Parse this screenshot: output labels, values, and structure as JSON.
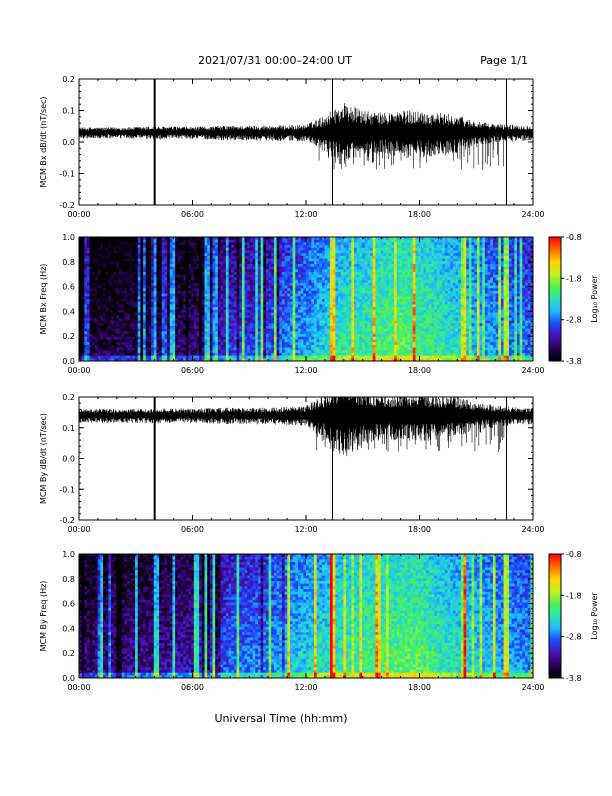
{
  "header": {
    "date_range": "2021/07/31  00:00–24:00 UT",
    "page": "Page 1/1"
  },
  "xlabel": "Universal Time (hh:mm)",
  "colors": {
    "trace": "#000000",
    "background": "#ffffff",
    "colormap": [
      "#000000",
      "#2a0055",
      "#4b0fb0",
      "#1a4bff",
      "#1fb8ff",
      "#2be3b5",
      "#55f24a",
      "#c8f020",
      "#ffd400",
      "#ff6a00",
      "#ff0000"
    ]
  },
  "chart_data": [
    {
      "type": "line",
      "panel": "Bx time series",
      "ylabel": "MCM Bx dB/dt (nT/sec)",
      "x_ticks": [
        "00:00",
        "06:00",
        "12:00",
        "18:00",
        "24:00"
      ],
      "y_ticks": [
        "0.2",
        "0.1",
        "0.0",
        "-0.1",
        "-0.2"
      ],
      "xlim": [
        0,
        24
      ],
      "ylim": [
        -0.2,
        0.2
      ],
      "baseline": 0.03,
      "envelope": {
        "hours": [
          0,
          2,
          4,
          6,
          8,
          10,
          12,
          13,
          14,
          15,
          16,
          17,
          18,
          19,
          20,
          21,
          22,
          23,
          24
        ],
        "amplitude": [
          0.012,
          0.012,
          0.014,
          0.013,
          0.016,
          0.016,
          0.018,
          0.04,
          0.07,
          0.05,
          0.045,
          0.05,
          0.05,
          0.045,
          0.04,
          0.025,
          0.02,
          0.018,
          0.015
        ]
      },
      "spikes": [
        {
          "hour": 4.0,
          "min": -0.2,
          "max": 0.2
        },
        {
          "hour": 13.4,
          "min": -0.2,
          "max": 0.2
        },
        {
          "hour": 22.6,
          "min": -0.2,
          "max": 0.2
        }
      ]
    },
    {
      "type": "heatmap",
      "panel": "Bx spectrogram",
      "ylabel": "MCM Bx Freq (Hz)",
      "x_ticks": [
        "00:00",
        "06:00",
        "12:00",
        "18:00",
        "24:00"
      ],
      "y_ticks": [
        "1.0",
        "0.8",
        "0.6",
        "0.4",
        "0.2",
        "0.0"
      ],
      "xlim": [
        0,
        24
      ],
      "ylim": [
        0,
        1.0
      ],
      "colorbar": {
        "label": "Log₁₀ Power",
        "ticks": [
          "-0.8",
          "-1.8",
          "-2.8",
          "-3.8"
        ],
        "range": [
          -3.8,
          -0.8
        ]
      },
      "power_profile": {
        "hours": [
          0,
          2,
          4,
          6,
          7,
          8,
          10,
          11,
          12,
          13,
          14,
          15,
          16,
          17,
          18,
          19,
          20,
          21,
          22,
          23,
          24
        ],
        "log_power": [
          -3.6,
          -3.5,
          -3.5,
          -3.4,
          -3.3,
          -3.0,
          -2.9,
          -2.7,
          -2.6,
          -2.4,
          -2.2,
          -2.2,
          -2.1,
          -2.0,
          -2.1,
          -2.2,
          -2.3,
          -2.5,
          -2.6,
          -2.7,
          -2.8
        ]
      },
      "bright_bands_hours": [
        4.0,
        13.4,
        20.4,
        22.6
      ]
    },
    {
      "type": "line",
      "panel": "By time series",
      "ylabel": "MCM By dB/dt (nT/sec)",
      "x_ticks": [
        "00:00",
        "06:00",
        "12:00",
        "18:00",
        "24:00"
      ],
      "y_ticks": [
        "0.2",
        "0.1",
        "0.0",
        "-0.1",
        "-0.2"
      ],
      "xlim": [
        0,
        24
      ],
      "ylim": [
        -0.2,
        0.2
      ],
      "baseline": 0.14,
      "envelope": {
        "hours": [
          0,
          2,
          4,
          6,
          8,
          10,
          12,
          13,
          14,
          15,
          16,
          17,
          18,
          19,
          20,
          21,
          22,
          23,
          24
        ],
        "amplitude": [
          0.015,
          0.015,
          0.016,
          0.016,
          0.018,
          0.018,
          0.022,
          0.05,
          0.09,
          0.06,
          0.05,
          0.05,
          0.055,
          0.05,
          0.045,
          0.03,
          0.025,
          0.02,
          0.018
        ]
      },
      "spikes": [
        {
          "hour": 4.0,
          "min": -0.2,
          "max": 0.2
        },
        {
          "hour": 13.4,
          "min": -0.2,
          "max": 0.2
        },
        {
          "hour": 22.6,
          "min": -0.2,
          "max": 0.2
        }
      ]
    },
    {
      "type": "heatmap",
      "panel": "By spectrogram",
      "ylabel": "MCM By Freq (Hz)",
      "x_ticks": [
        "00:00",
        "06:00",
        "12:00",
        "18:00",
        "24:00"
      ],
      "y_ticks": [
        "1.0",
        "0.8",
        "0.6",
        "0.4",
        "0.2",
        "0.0"
      ],
      "xlim": [
        0,
        24
      ],
      "ylim": [
        0,
        1.0
      ],
      "colorbar": {
        "label": "Log₁₀ Power",
        "ticks": [
          "-0.8",
          "-1.8",
          "-2.8",
          "-3.8"
        ],
        "range": [
          -3.8,
          -0.8
        ]
      },
      "power_profile": {
        "hours": [
          0,
          2,
          4,
          6,
          7,
          8,
          10,
          11,
          12,
          13,
          14,
          15,
          16,
          17,
          18,
          19,
          20,
          21,
          22,
          23,
          24
        ],
        "log_power": [
          -3.4,
          -3.3,
          -3.3,
          -3.2,
          -3.0,
          -2.8,
          -2.7,
          -2.5,
          -2.4,
          -2.3,
          -2.2,
          -2.1,
          -2.1,
          -2.0,
          -2.0,
          -2.2,
          -2.3,
          -2.4,
          -2.5,
          -2.6,
          -2.7
        ]
      },
      "bright_bands_hours": [
        1.2,
        4.0,
        13.4,
        20.4,
        22.6
      ]
    }
  ]
}
